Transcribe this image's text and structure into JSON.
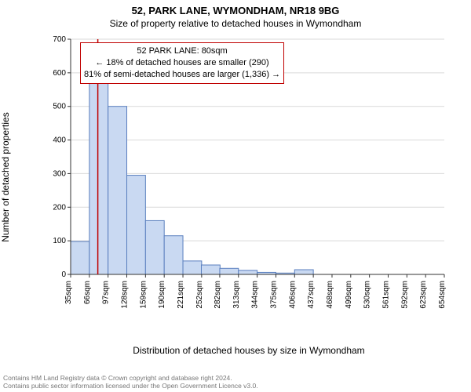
{
  "address": "52, PARK LANE, WYMONDHAM, NR18 9BG",
  "subtitle": "Size of property relative to detached houses in Wymondham",
  "y_label": "Number of detached properties",
  "x_caption": "Distribution of detached houses by size in Wymondham",
  "footer_line1": "Contains HM Land Registry data © Crown copyright and database right 2024.",
  "footer_line2": "Contains public sector information licensed under the Open Government Licence v3.0.",
  "chart": {
    "type": "histogram",
    "ylim": [
      0,
      700
    ],
    "ytick_step": 100,
    "xticks": [
      35,
      66,
      97,
      128,
      159,
      190,
      221,
      252,
      282,
      313,
      344,
      375,
      406,
      437,
      468,
      499,
      530,
      561,
      592,
      623,
      654
    ],
    "xtick_suffix": "sqm",
    "bars": [
      {
        "x_center": 50.5,
        "value": 98
      },
      {
        "x_center": 81.5,
        "value": 575
      },
      {
        "x_center": 112.5,
        "value": 500
      },
      {
        "x_center": 143.5,
        "value": 295
      },
      {
        "x_center": 174.5,
        "value": 160
      },
      {
        "x_center": 205.5,
        "value": 115
      },
      {
        "x_center": 236.5,
        "value": 40
      },
      {
        "x_center": 267.0,
        "value": 28
      },
      {
        "x_center": 297.5,
        "value": 18
      },
      {
        "x_center": 328.5,
        "value": 12
      },
      {
        "x_center": 359.5,
        "value": 6
      },
      {
        "x_center": 390.5,
        "value": 4
      },
      {
        "x_center": 421.5,
        "value": 14
      },
      {
        "x_center": 452.5,
        "value": 0
      },
      {
        "x_center": 483.5,
        "value": 0
      },
      {
        "x_center": 514.5,
        "value": 0
      },
      {
        "x_center": 545.5,
        "value": 0
      },
      {
        "x_center": 576.5,
        "value": 0
      },
      {
        "x_center": 607.5,
        "value": 0
      },
      {
        "x_center": 638.5,
        "value": 0
      }
    ],
    "bar_fill": "#c9d9f2",
    "bar_stroke": "#5a7fbf",
    "grid_color": "#d9d9d9",
    "axis_color": "#333333",
    "tick_font_size": 10,
    "marker_line_x": 80,
    "marker_line_color": "#c00000",
    "background": "#ffffff"
  },
  "infobox": {
    "line1": "52 PARK LANE: 80sqm",
    "line2": "← 18% of detached houses are smaller (290)",
    "line3": "81% of semi-detached houses are larger (1,336) →",
    "border_color": "#c00000"
  }
}
